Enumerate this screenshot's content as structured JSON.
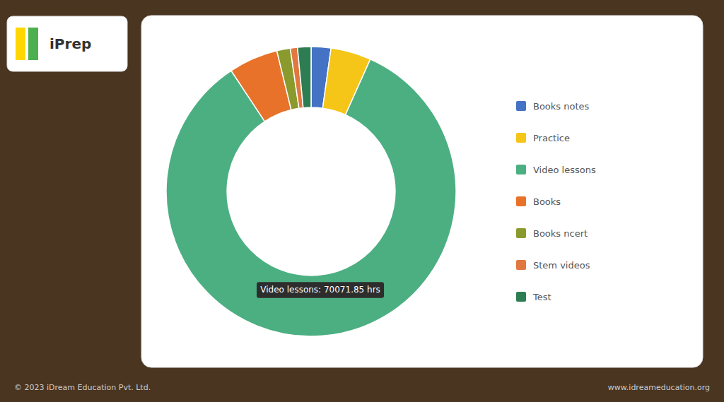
{
  "chart_data": {
    "type": "donut",
    "categories": [
      "Books notes",
      "Practice",
      "Video lessons",
      "Books",
      "Books ncert",
      "Stem videos",
      "Test"
    ],
    "values": [
      2.2,
      4.5,
      84.0,
      5.5,
      1.5,
      0.8,
      1.5
    ],
    "colors": [
      "#4472C4",
      "#F5C518",
      "#4CAF82",
      "#E8722A",
      "#8B9A2C",
      "#E07840",
      "#2E7D52"
    ],
    "legend": "right",
    "annotations": [
      "Video lessons: 70071.85 hrs",
      "© 2023 iDream Education Pvt. Ltd.",
      "www.idreameducation.org",
      "iPrep"
    ]
  }
}
